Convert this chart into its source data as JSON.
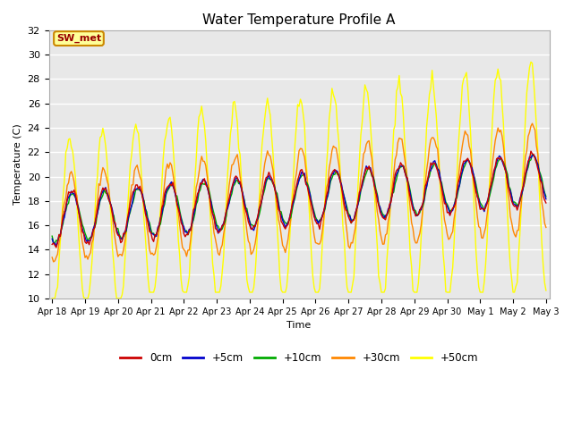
{
  "title": "Water Temperature Profile A",
  "xlabel": "Time",
  "ylabel": "Temperature (C)",
  "ylim": [
    10,
    32
  ],
  "background_color": "#ffffff",
  "plot_bg_color": "#e8e8e8",
  "grid_color": "#ffffff",
  "series_colors": {
    "0cm": "#cc0000",
    "+5cm": "#0000cc",
    "+10cm": "#00aa00",
    "+30cm": "#ff8800",
    "+50cm": "#ffff00"
  },
  "legend_label": "SW_met",
  "legend_bg": "#ffff99",
  "legend_border": "#cc8800",
  "legend_text_color": "#990000",
  "x_tick_labels": [
    "Apr 18",
    "Apr 19",
    "Apr 20",
    "Apr 21",
    "Apr 22",
    "Apr 23",
    "Apr 24",
    "Apr 25",
    "Apr 26",
    "Apr 27",
    "Apr 28",
    "Apr 29",
    "Apr 30",
    "May 1",
    "May 2",
    "May 3"
  ],
  "title_fontsize": 11,
  "axis_fontsize": 8,
  "tick_fontsize": 8
}
